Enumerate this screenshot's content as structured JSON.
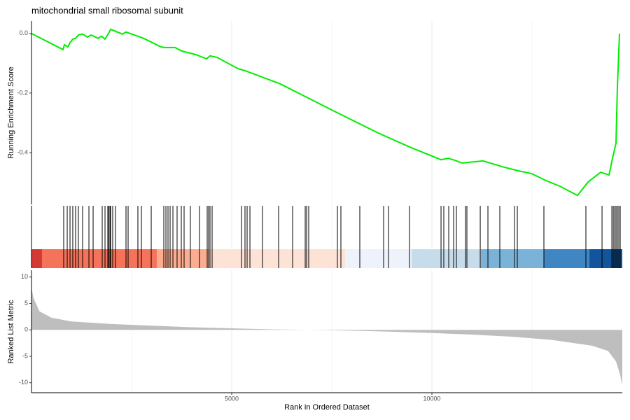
{
  "chart_data": [
    {
      "type": "line",
      "title": "mitochondrial small ribosomal subunit",
      "ylabel": "Running Enrichment Score",
      "color": "#00ee00",
      "x": [
        0,
        787,
        822,
        909,
        962,
        1031,
        1101,
        1171,
        1276,
        1399,
        1486,
        1661,
        1748,
        1836,
        1923,
        1976,
        2273,
        2360,
        2797,
        3234,
        3322,
        3584,
        3759,
        4109,
        4371,
        4458,
        4633,
        5157,
        5332,
        6206,
        7605,
        8654,
        9441,
        10228,
        10402,
        10577,
        10752,
        11277,
        11801,
        12151,
        12500,
        12850,
        13200,
        13637,
        13899,
        14214,
        14424,
        14511,
        14598,
        14633,
        14685
      ],
      "values": [
        0,
        -0.054,
        -0.038,
        -0.045,
        -0.031,
        -0.019,
        -0.016,
        -0.005,
        -0.002,
        -0.012,
        -0.005,
        -0.016,
        -0.009,
        -0.019,
        0,
        0.014,
        -0.002,
        0.005,
        -0.016,
        -0.045,
        -0.047,
        -0.047,
        -0.059,
        -0.071,
        -0.085,
        -0.075,
        -0.08,
        -0.118,
        -0.125,
        -0.169,
        -0.264,
        -0.334,
        -0.381,
        -0.424,
        -0.419,
        -0.426,
        -0.435,
        -0.428,
        -0.449,
        -0.461,
        -0.471,
        -0.494,
        -0.513,
        -0.544,
        -0.499,
        -0.466,
        -0.475,
        -0.419,
        -0.369,
        -0.179,
        0
      ],
      "xlim": [
        0,
        14755
      ],
      "ylim": [
        -0.574,
        0.042
      ],
      "yticks": [
        {
          "value": -0.4,
          "label": "-0.4"
        },
        {
          "value": -0.2,
          "label": "-0.2"
        },
        {
          "value": 0,
          "label": "0.0"
        }
      ]
    },
    {
      "type": "rug",
      "xlim": [
        0,
        14755
      ],
      "x": [
        804,
        892,
        962,
        1031,
        1101,
        1171,
        1276,
        1434,
        1539,
        1766,
        1836,
        1906,
        1923,
        1958,
        1976,
        2028,
        2098,
        2360,
        2413,
        2657,
        2745,
        2990,
        3304,
        3357,
        3409,
        3462,
        3532,
        3636,
        3741,
        3811,
        3968,
        4196,
        4388,
        4423,
        4458,
        4511,
        5245,
        5332,
        5385,
        5455,
        5769,
        6171,
        6521,
        6836,
        6871,
        6923,
        7640,
        7727,
        8199,
        8794,
        8916,
        9441,
        10228,
        10297,
        10420,
        10542,
        10612,
        10839,
        10874,
        11207,
        11399,
        11696,
        12063,
        12133,
        12797,
        13846,
        14249,
        14494,
        14529,
        14564,
        14598,
        14633,
        14668,
        14703
      ],
      "bands": [
        {
          "start": 0,
          "end": 262,
          "color": "#d33a35"
        },
        {
          "start": 262,
          "end": 3129,
          "color": "#f4735a"
        },
        {
          "start": 3129,
          "end": 4423,
          "color": "#fcac90"
        },
        {
          "start": 4423,
          "end": 7832,
          "color": "#fde2d6"
        },
        {
          "start": 7832,
          "end": 9493,
          "color": "#eef3fb"
        },
        {
          "start": 9493,
          "end": 11224,
          "color": "#c7dcea"
        },
        {
          "start": 11224,
          "end": 12797,
          "color": "#7bb3d8"
        },
        {
          "start": 12797,
          "end": 13934,
          "color": "#3f86c3"
        },
        {
          "start": 13934,
          "end": 14755,
          "color": "#11559c"
        }
      ]
    },
    {
      "type": "area",
      "ylabel": "Ranked List Metric",
      "xlabel": "Rank in Ordered Dataset",
      "color": "#bebebe",
      "x": [
        0,
        50,
        200,
        500,
        1000,
        2000,
        3000,
        4000,
        5000,
        6000,
        7000,
        8000,
        9000,
        10000,
        11000,
        12000,
        13000,
        14000,
        14400,
        14600,
        14700,
        14755
      ],
      "values": [
        8,
        6,
        3.5,
        2.3,
        1.6,
        1.1,
        0.8,
        0.5,
        0.3,
        0.1,
        0,
        -0.15,
        -0.35,
        -0.6,
        -0.9,
        -1.3,
        -1.9,
        -3,
        -4,
        -6,
        -8.5,
        -10.5
      ],
      "xlim": [
        0,
        14755
      ],
      "ylim": [
        -11.9,
        11.3
      ],
      "yticks": [
        -10,
        -5,
        0,
        5,
        10
      ],
      "xticks": [
        5000,
        10000
      ],
      "minor_xticks": [
        2500,
        7500,
        12500
      ],
      "grid": true
    }
  ]
}
